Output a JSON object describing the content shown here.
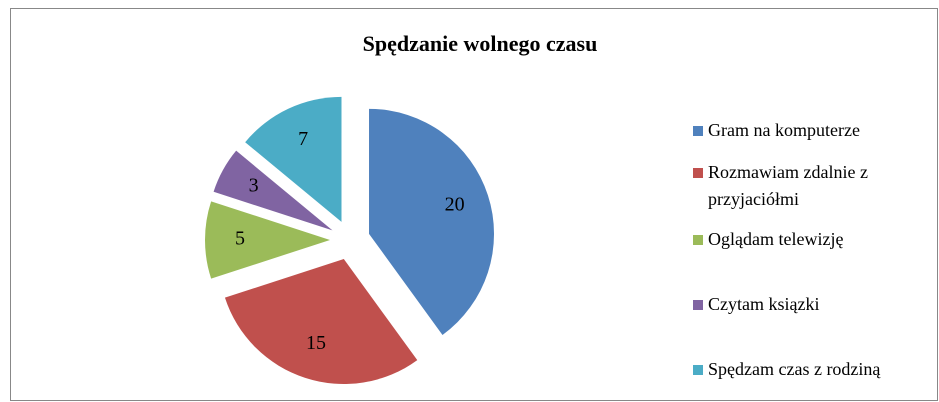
{
  "chart_data": {
    "type": "pie",
    "title": "Spędzanie wolnego czasu",
    "categories": [
      "Gram na komputerze",
      "Rozmawiam zdalnie z przyjaciółmi",
      "Oglądam telewizję",
      "Czytam ksiązki",
      "Spędzam czas z rodziną"
    ],
    "values": [
      20,
      15,
      5,
      3,
      7
    ],
    "colors": [
      "#4f81bd",
      "#c0504d",
      "#9bbb59",
      "#8064a2",
      "#4bacc6"
    ],
    "legend": "right"
  }
}
